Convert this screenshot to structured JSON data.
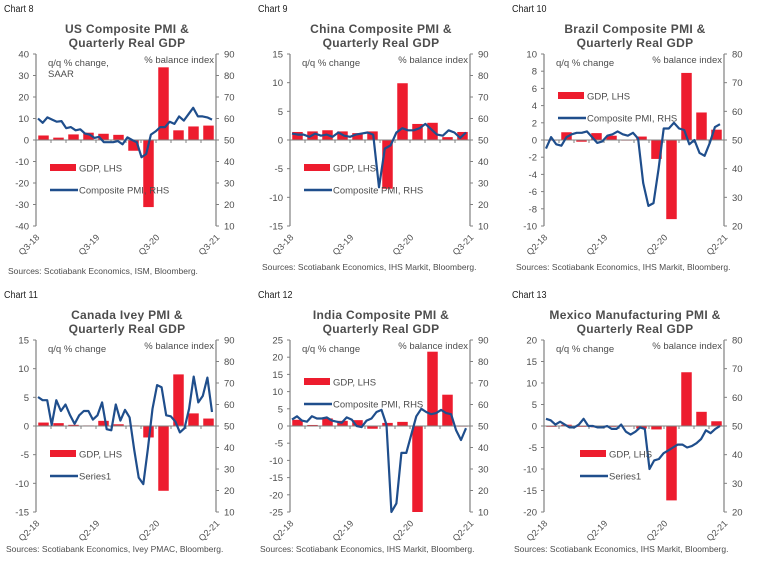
{
  "chart_data": [
    {
      "id": "chart8",
      "type": "bar+line",
      "chart_label": "Chart 8",
      "title_line1": "US Composite PMI &",
      "title_line2": "Quarterly Real GDP",
      "left_unit_line1": "q/q % change,",
      "left_unit_line2": "SAAR",
      "right_unit": "% balance index",
      "left_ylim": [
        -40,
        40
      ],
      "left_ticks": [
        40,
        30,
        20,
        10,
        0,
        -10,
        -20,
        -30,
        -40
      ],
      "right_ylim": [
        10,
        90
      ],
      "right_ticks": [
        90,
        80,
        70,
        60,
        50,
        40,
        30,
        20,
        10
      ],
      "x_tick_labels": [
        "Q3-18",
        "Q3-19",
        "Q3-20",
        "Q3-21"
      ],
      "legend": [
        "GDP, LHS",
        "Composite PMI, RHS"
      ],
      "legend_position": "bottom-left",
      "bar_series": {
        "name": "GDP, LHS",
        "values": [
          2.1,
          1.1,
          2.6,
          3.4,
          2.9,
          2.4,
          -5.0,
          -31.2,
          33.8,
          4.5,
          6.3,
          6.7
        ]
      },
      "line_series": {
        "name": "Composite PMI, RHS",
        "values": [
          60.0,
          58.0,
          60.5,
          59.5,
          58.5,
          58.8,
          55.5,
          56.0,
          54.5,
          55.0,
          53.0,
          52.5,
          51.0,
          51.5,
          49.0,
          49.0,
          49.0,
          49.5,
          48.0,
          51.2,
          50.0,
          49.0,
          42.0,
          43.5,
          52.5,
          54.0,
          56.0,
          56.0,
          58.5,
          57.5,
          61.0,
          59.0,
          62.0,
          65.0,
          61.0,
          61.0,
          60.5,
          59.5
        ]
      },
      "source": "Sources: Scotiabank Economics, ISM, Bloomberg."
    },
    {
      "id": "chart9",
      "type": "bar+line",
      "chart_label": "Chart 9",
      "title_line1": "China Composite PMI &",
      "title_line2": "Quarterly Real GDP",
      "left_unit_line1": "q/q % change",
      "left_unit_line2": "",
      "right_unit": "% balance index",
      "left_ylim": [
        -15,
        15
      ],
      "left_ticks": [
        15,
        10,
        5,
        0,
        -5,
        -10,
        -15
      ],
      "right_ylim": [
        10,
        90
      ],
      "right_ticks": [
        90,
        80,
        70,
        60,
        50,
        40,
        30,
        20,
        10
      ],
      "x_tick_labels": [
        "Q3-18",
        "Q3-19",
        "Q3-20",
        "Q3-21"
      ],
      "legend": [
        "GDP, LHS",
        "Composite PMI, RHS"
      ],
      "legend_position": "bottom-left",
      "bar_series": {
        "name": "GDP, LHS",
        "values": [
          1.4,
          1.5,
          1.7,
          1.5,
          1.2,
          1.5,
          -8.5,
          9.9,
          2.8,
          3.0,
          0.5,
          1.4
        ]
      },
      "line_series": {
        "name": "Composite PMI, RHS",
        "values": [
          53.0,
          52.5,
          52.5,
          51.5,
          53.0,
          52.0,
          52.5,
          51.5,
          53.5,
          52.0,
          51.5,
          52.5,
          53.0,
          53.5,
          52.5,
          28.0,
          46.0,
          47.5,
          53.5,
          55.5,
          54.5,
          54.5,
          55.5,
          57.5,
          55.0,
          52.5,
          52.0,
          54.5,
          53.5,
          51.0,
          53.5
        ]
      },
      "source": "Sources: Scotiabank Economics, IHS Markit, Bloomberg."
    },
    {
      "id": "chart10",
      "type": "bar+line",
      "chart_label": "Chart 10",
      "title_line1": "Brazil Composite PMI &",
      "title_line2": "Quarterly Real GDP",
      "left_unit_line1": "q/q % change",
      "left_unit_line2": "",
      "right_unit": "% balance index",
      "left_ylim": [
        -10,
        10
      ],
      "left_ticks": [
        10,
        8,
        6,
        4,
        2,
        0,
        -2,
        -4,
        -6,
        -8,
        -10
      ],
      "right_ylim": [
        20,
        80
      ],
      "right_ticks": [
        80,
        70,
        60,
        50,
        40,
        30,
        20
      ],
      "x_tick_labels": [
        "Q2-18",
        "Q2-19",
        "Q2-20",
        "Q2-21"
      ],
      "legend": [
        "GDP, LHS",
        "Composite PMI, RHS"
      ],
      "legend_position": "top-left",
      "bar_series": {
        "name": "GDP, LHS",
        "values": [
          0.0,
          0.9,
          -0.2,
          0.8,
          0.5,
          0.0,
          0.4,
          -2.2,
          -9.2,
          7.8,
          3.2,
          1.2
        ]
      },
      "line_series": {
        "name": "Composite PMI, RHS",
        "values": [
          47.0,
          51.0,
          48.5,
          48.0,
          51.0,
          52.0,
          52.5,
          52.5,
          53.0,
          51.0,
          49.0,
          49.5,
          51.5,
          52.0,
          53.0,
          52.0,
          51.5,
          52.5,
          50.5,
          35.0,
          27.0,
          28.0,
          40.0,
          54.0,
          54.0,
          56.0,
          54.0,
          53.5,
          48.5,
          50.0,
          45.5,
          44.5,
          49.0,
          54.5,
          55.5
        ]
      },
      "source": "Sources: Scotiabank Economics, IHS Markit, Bloomberg."
    },
    {
      "id": "chart11",
      "type": "bar+line",
      "chart_label": "Chart 11",
      "title_line1": "Canada Ivey PMI &",
      "title_line2": "Quarterly Real GDP",
      "left_unit_line1": "q/q % change",
      "left_unit_line2": "",
      "right_unit": "% balance index",
      "left_ylim": [
        -15,
        15
      ],
      "left_ticks": [
        15,
        10,
        5,
        0,
        -5,
        -10,
        -15
      ],
      "right_ylim": [
        10,
        90
      ],
      "right_ticks": [
        90,
        80,
        70,
        60,
        50,
        40,
        30,
        20,
        10
      ],
      "x_tick_labels": [
        "Q2-18",
        "Q2-19",
        "Q2-20",
        "Q2-21"
      ],
      "legend": [
        "GDP, LHS",
        "Series1"
      ],
      "legend_position": "bottom-left",
      "bar_series": {
        "name": "GDP, LHS",
        "values": [
          0.6,
          0.5,
          0.2,
          0.1,
          0.9,
          0.3,
          0.1,
          -2.0,
          -11.3,
          9.0,
          2.2,
          1.3
        ]
      },
      "line_series": {
        "name": "Series1",
        "values": [
          63.5,
          62.0,
          62.0,
          50.5,
          62.0,
          57.0,
          60.0,
          55.0,
          51.0,
          55.0,
          57.0,
          57.0,
          53.0,
          55.0,
          61.0,
          48.5,
          48.0,
          60.0,
          52.5,
          57.5,
          54.0,
          39.0,
          26.0,
          23.0,
          39.5,
          58.0,
          69.0,
          68.0,
          55.0,
          54.5,
          52.0,
          47.0,
          49.0,
          58.0,
          73.0,
          61.0,
          64.0,
          72.5,
          56.5
        ]
      },
      "source": "Sources: Scotiabank Economics, Ivey PMAC, Bloomberg."
    },
    {
      "id": "chart12",
      "type": "bar+line",
      "chart_label": "Chart 12",
      "title_line1": "India Composite PMI &",
      "title_line2": "Quarterly Real GDP",
      "left_unit_line1": "q/q % change",
      "left_unit_line2": "",
      "right_unit": "% balance index",
      "left_ylim": [
        -25,
        25
      ],
      "left_ticks": [
        25,
        20,
        15,
        10,
        5,
        0,
        -5,
        -10,
        -15,
        -20,
        -25
      ],
      "right_ylim": [
        10,
        90
      ],
      "right_ticks": [
        90,
        80,
        70,
        60,
        50,
        40,
        30,
        20,
        10
      ],
      "x_tick_labels": [
        "Q2-18",
        "Q2-19",
        "Q2-20",
        "Q2-21"
      ],
      "legend": [
        "GDP, LHS",
        "Composite PMI, RHS"
      ],
      "legend_position": "top-left",
      "bar_series": {
        "name": "GDP, LHS",
        "values": [
          1.8,
          0.3,
          2.2,
          1.5,
          1.7,
          -0.8,
          0.9,
          1.2,
          -25.0,
          21.6,
          9.1,
          0.0
        ]
      },
      "line_series": {
        "name": "Composite PMI, RHS",
        "values": [
          53.0,
          54.5,
          52.5,
          52.0,
          54.5,
          53.5,
          53.5,
          54.0,
          52.5,
          52.0,
          51.5,
          54.0,
          53.0,
          50.0,
          49.5,
          52.5,
          53.5,
          56.5,
          57.5,
          50.5,
          8.0,
          14.0,
          37.5,
          37.5,
          46.0,
          54.5,
          58.0,
          56.5,
          55.5,
          56.0,
          57.5,
          56.0,
          55.5,
          48.0,
          43.5,
          49.0
        ]
      },
      "source": "Sources: Scotiabank Economics, IHS Markit, Bloomberg."
    },
    {
      "id": "chart13",
      "type": "bar+line",
      "chart_label": "Chart 13",
      "title_line1": "Mexico Manufacturing PMI &",
      "title_line2": "Quarterly Real GDP",
      "left_unit_line1": "q/q % change",
      "left_unit_line2": "",
      "right_unit": "% balance index",
      "left_ylim": [
        -20,
        20
      ],
      "left_ticks": [
        20,
        15,
        10,
        5,
        0,
        -5,
        -10,
        -15,
        -20
      ],
      "right_ylim": [
        20,
        80
      ],
      "right_ticks": [
        80,
        70,
        60,
        50,
        40,
        30,
        20
      ],
      "x_tick_labels": [
        "Q2-18",
        "Q2-19",
        "Q2-20",
        "Q2-21"
      ],
      "legend": [
        "GDP, LHS",
        "Series1"
      ],
      "legend_position": "bottom-left",
      "bar_series": {
        "name": "GDP, LHS",
        "values": [
          -0.2,
          0.3,
          -0.2,
          -0.3,
          -0.2,
          -0.1,
          -0.6,
          -0.8,
          -17.3,
          12.5,
          3.3,
          1.1
        ]
      },
      "line_series": {
        "name": "Series1",
        "values": [
          52.5,
          52.0,
          50.5,
          51.5,
          50.5,
          49.5,
          49.5,
          50.5,
          52.5,
          50.0,
          50.0,
          49.5,
          49.5,
          50.0,
          49.0,
          49.0,
          50.5,
          48.0,
          47.0,
          48.0,
          49.5,
          49.0,
          35.0,
          38.0,
          38.5,
          40.5,
          41.5,
          42.5,
          43.5,
          43.5,
          42.5,
          43.0,
          44.0,
          45.5,
          48.5,
          47.5,
          49.0,
          50.0
        ]
      },
      "source": "Sources: Scotiabank Economics, IHS Markit, Bloomberg."
    }
  ],
  "colors": {
    "bar": "#ed1c2e",
    "line": "#1f4e8c",
    "axis": "#808080",
    "text": "#4d4d4d"
  }
}
